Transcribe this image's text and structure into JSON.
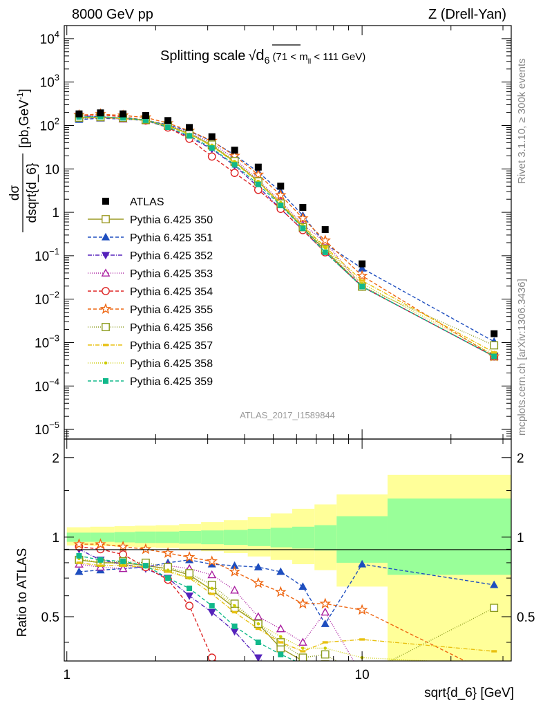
{
  "header": {
    "left": "8000 GeV pp",
    "right": "Z (Drell-Yan)"
  },
  "plot_title": {
    "main": "Splitting scale",
    "sqrt_symbol": "√",
    "var": "d",
    "var_sub": "6",
    "range": "(71 < m",
    "range_sub": "ll",
    "range_end": " < 111 GeV)"
  },
  "side": {
    "rivet": "Rivet 3.1.10, ≥ 300k events",
    "mcplots": "mcplots.cern.ch [arXiv:1306.3436]"
  },
  "analysis_id": "ATLAS_2017_I1589844",
  "ratio_ylabel": "Ratio to ATLAS",
  "xlabel": "sqrt{d_6} [GeV]",
  "ylabel_main": {
    "num": "dσ",
    "den": "dsqrt{d_6}",
    "unit": "[pb,GeV",
    "unit_sup": "-1",
    "unit_end": "]"
  },
  "main_yticks": [
    {
      "base": "10",
      "exp": "4",
      "v": 10000
    },
    {
      "base": "10",
      "exp": "3",
      "v": 1000
    },
    {
      "base": "10",
      "exp": "2",
      "v": 100
    },
    {
      "base": "10",
      "exp": "",
      "v": 10
    },
    {
      "base": "1",
      "exp": "",
      "v": 1
    },
    {
      "base": "10",
      "exp": "−1",
      "v": 0.1
    },
    {
      "base": "10",
      "exp": "−2",
      "v": 0.01
    },
    {
      "base": "10",
      "exp": "−3",
      "v": 0.001
    },
    {
      "base": "10",
      "exp": "−4",
      "v": 0.0001
    },
    {
      "base": "10",
      "exp": "−5",
      "v": 1e-05
    }
  ],
  "ratio_yticks": [
    {
      "label": "0.5",
      "v": 0.5
    },
    {
      "label": "1",
      "v": 1
    },
    {
      "label": "2",
      "v": 2
    }
  ],
  "xticks": [
    {
      "label": "1",
      "v": 1
    },
    {
      "label": "10",
      "v": 10
    }
  ],
  "chart_data": {
    "type": "scatter",
    "x_scale": "log",
    "y_scale": "log",
    "xlim": [
      0.98,
      32
    ],
    "ylim": [
      6e-06,
      20000
    ],
    "ratio_ylim": [
      0.34,
      2.35
    ],
    "x": [
      1.1,
      1.3,
      1.55,
      1.85,
      2.2,
      2.6,
      3.1,
      3.7,
      4.45,
      5.3,
      6.3,
      7.5,
      10,
      28
    ],
    "data": {
      "name": "ATLAS",
      "values": [
        185,
        195,
        185,
        170,
        130,
        90,
        55,
        27,
        11,
        4,
        1.3,
        0.4,
        0.065,
        0.0016
      ]
    },
    "band_edges": [
      1,
      1.2,
      1.45,
      1.7,
      2.0,
      2.4,
      2.85,
      3.4,
      4.1,
      4.9,
      5.8,
      6.9,
      8.2,
      12.2,
      32
    ],
    "band_inner": [
      [
        0.96,
        1.04
      ],
      [
        0.96,
        1.04
      ],
      [
        0.955,
        1.045
      ],
      [
        0.95,
        1.05
      ],
      [
        0.95,
        1.05
      ],
      [
        0.945,
        1.055
      ],
      [
        0.94,
        1.06
      ],
      [
        0.935,
        1.065
      ],
      [
        0.925,
        1.075
      ],
      [
        0.915,
        1.085
      ],
      [
        0.905,
        1.095
      ],
      [
        0.89,
        1.11
      ],
      [
        0.8,
        1.2
      ],
      [
        0.72,
        1.4
      ]
    ],
    "band_outer": [
      [
        0.93,
        1.09
      ],
      [
        0.925,
        1.095
      ],
      [
        0.92,
        1.1
      ],
      [
        0.915,
        1.105
      ],
      [
        0.91,
        1.11
      ],
      [
        0.9,
        1.12
      ],
      [
        0.885,
        1.14
      ],
      [
        0.87,
        1.16
      ],
      [
        0.845,
        1.19
      ],
      [
        0.82,
        1.23
      ],
      [
        0.79,
        1.28
      ],
      [
        0.75,
        1.33
      ],
      [
        0.65,
        1.45
      ],
      [
        0.25,
        1.72
      ]
    ],
    "series": [
      {
        "name": "Pythia 6.425 350",
        "color": "#9c9a24",
        "marker": "square-open",
        "dash": "solid",
        "ratios": [
          0.82,
          0.8,
          0.8,
          0.78,
          0.76,
          0.72,
          0.63,
          0.54,
          0.47,
          0.38,
          0.34,
          0.33,
          0.3,
          0.3
        ]
      },
      {
        "name": "Pythia 6.425 351",
        "color": "#1e4ebf",
        "marker": "triangle-up",
        "dash": "5,3",
        "ratios": [
          0.74,
          0.75,
          0.76,
          0.77,
          0.8,
          0.82,
          0.79,
          0.78,
          0.77,
          0.74,
          0.65,
          0.47,
          0.79,
          0.66
        ]
      },
      {
        "name": "Pythia 6.425 352",
        "color": "#5522bb",
        "marker": "triangle-down",
        "dash": "6,2,1,2",
        "ratios": [
          0.9,
          0.82,
          0.79,
          0.76,
          0.7,
          0.6,
          0.52,
          0.44,
          0.35,
          0.3,
          0.3,
          0.3,
          0.3,
          0.3
        ]
      },
      {
        "name": "Pythia 6.425 353",
        "color": "#aa1fa0",
        "marker": "triangle-open",
        "dash": "1,2",
        "ratios": [
          0.79,
          0.77,
          0.76,
          0.78,
          0.78,
          0.76,
          0.72,
          0.63,
          0.5,
          0.45,
          0.4,
          0.52,
          0.3,
          0.3
        ]
      },
      {
        "name": "Pythia 6.425 354",
        "color": "#dd2222",
        "marker": "circle-open",
        "dash": "5,3",
        "ratios": [
          0.92,
          0.9,
          0.86,
          0.77,
          0.69,
          0.55,
          0.35,
          0.3,
          0.3,
          0.3,
          0.3,
          0.3,
          0.3,
          0.3
        ]
      },
      {
        "name": "Pythia 6.425 355",
        "color": "#ee6611",
        "marker": "star-open",
        "dash": "5,3",
        "ratios": [
          0.94,
          0.94,
          0.92,
          0.9,
          0.87,
          0.84,
          0.81,
          0.74,
          0.67,
          0.62,
          0.56,
          0.56,
          0.53,
          0.3
        ]
      },
      {
        "name": "Pythia 6.425 356",
        "color": "#8a9a1a",
        "marker": "square-open",
        "dash": "1,2",
        "ratios": [
          0.82,
          0.8,
          0.81,
          0.8,
          0.77,
          0.73,
          0.66,
          0.56,
          0.47,
          0.4,
          0.35,
          0.36,
          0.3,
          0.54
        ]
      },
      {
        "name": "Pythia 6.425 357",
        "color": "#e8c010",
        "marker": "dash",
        "dash": "6,2,1,2",
        "ratios": [
          0.8,
          0.78,
          0.78,
          0.77,
          0.74,
          0.7,
          0.61,
          0.52,
          0.45,
          0.4,
          0.37,
          0.4,
          0.41,
          0.37
        ]
      },
      {
        "name": "Pythia 6.425 358",
        "color": "#cccc00",
        "marker": "dot",
        "dash": "1,2",
        "ratios": [
          0.83,
          0.8,
          0.79,
          0.77,
          0.75,
          0.7,
          0.64,
          0.55,
          0.47,
          0.42,
          0.38,
          0.38,
          0.35,
          0.33
        ]
      },
      {
        "name": "Pythia 6.425 359",
        "color": "#11b88a",
        "marker": "square",
        "dash": "5,3",
        "ratios": [
          0.85,
          0.82,
          0.81,
          0.78,
          0.7,
          0.64,
          0.55,
          0.46,
          0.4,
          0.36,
          0.33,
          0.3,
          0.3,
          0.3
        ]
      }
    ]
  }
}
